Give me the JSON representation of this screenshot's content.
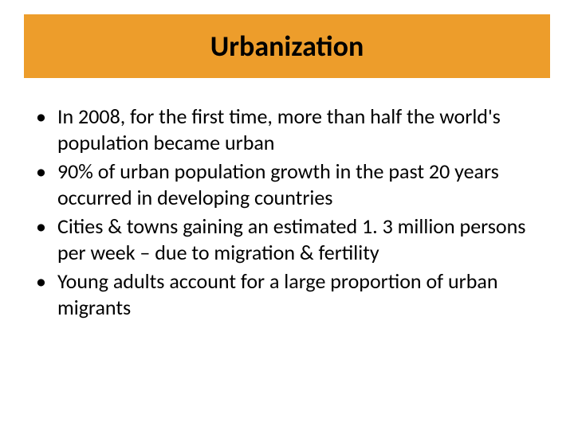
{
  "slide": {
    "title": "Urbanization",
    "title_bar_color": "#ed9d2b",
    "title_fontsize": 36,
    "title_color": "#000000",
    "background_color": "#ffffff",
    "bullet_marker": "•",
    "bullet_fontsize": 26,
    "bullet_color": "#000000",
    "bullets": [
      "In 2008, for the first time, more than half the world's population became urban",
      "90% of urban population growth in the past 20 years occurred in developing countries",
      "Cities & towns gaining an estimated 1. 3 million persons per week – due to migration & fertility",
      "Young adults account for a large proportion of urban migrants"
    ]
  }
}
